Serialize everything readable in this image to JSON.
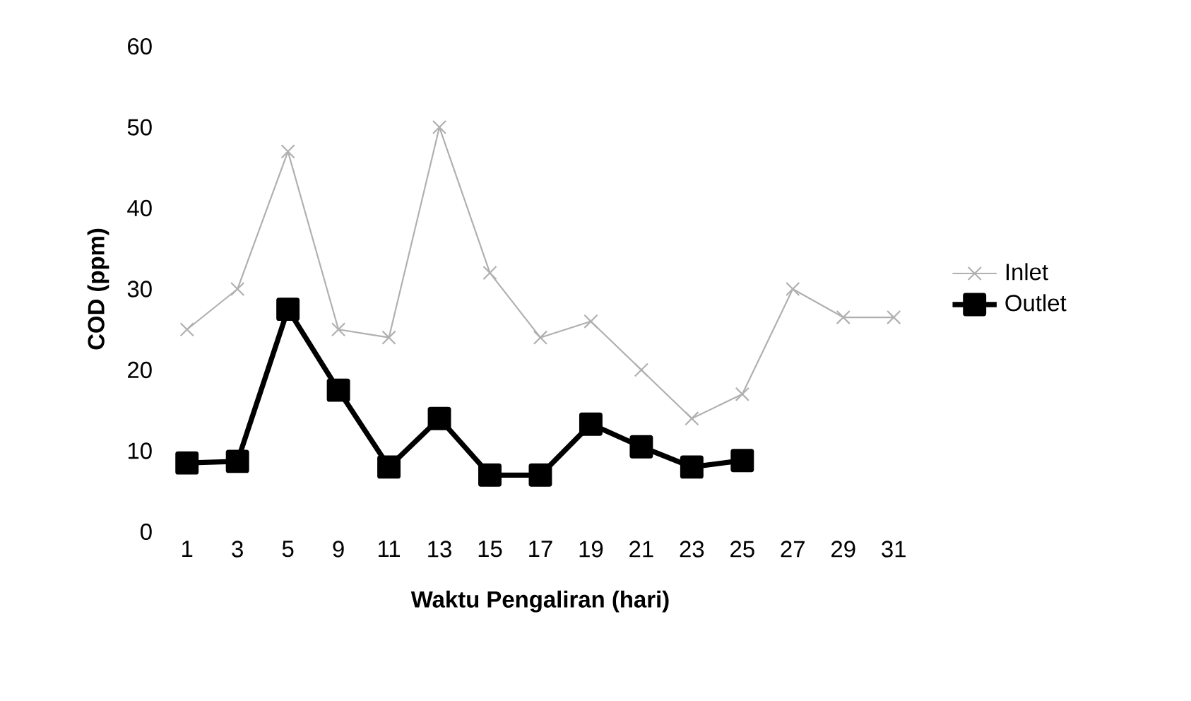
{
  "chart_data": {
    "type": "line",
    "xlabel": "Waktu Pengaliran (hari)",
    "ylabel": "COD (ppm)",
    "categories": [
      "1",
      "3",
      "5",
      "9",
      "11",
      "13",
      "15",
      "17",
      "19",
      "21",
      "23",
      "25",
      "27",
      "29",
      "31"
    ],
    "ylim": [
      0,
      60
    ],
    "yticks": [
      0,
      10,
      20,
      30,
      40,
      50,
      60
    ],
    "grid": false,
    "legend": "right",
    "series": [
      {
        "name": "Inlet",
        "color": "#b0b0b0",
        "marker": "cross",
        "values": [
          25,
          30,
          47,
          25,
          24,
          50,
          32,
          24,
          26,
          20,
          14,
          17,
          30,
          26.5,
          26.5
        ]
      },
      {
        "name": "Outlet",
        "color": "#000000",
        "marker": "square",
        "values": [
          8.5,
          8.7,
          27.5,
          17.5,
          8,
          14,
          7,
          7,
          13.3,
          10.5,
          8,
          8.8,
          null,
          null,
          null
        ]
      }
    ]
  }
}
